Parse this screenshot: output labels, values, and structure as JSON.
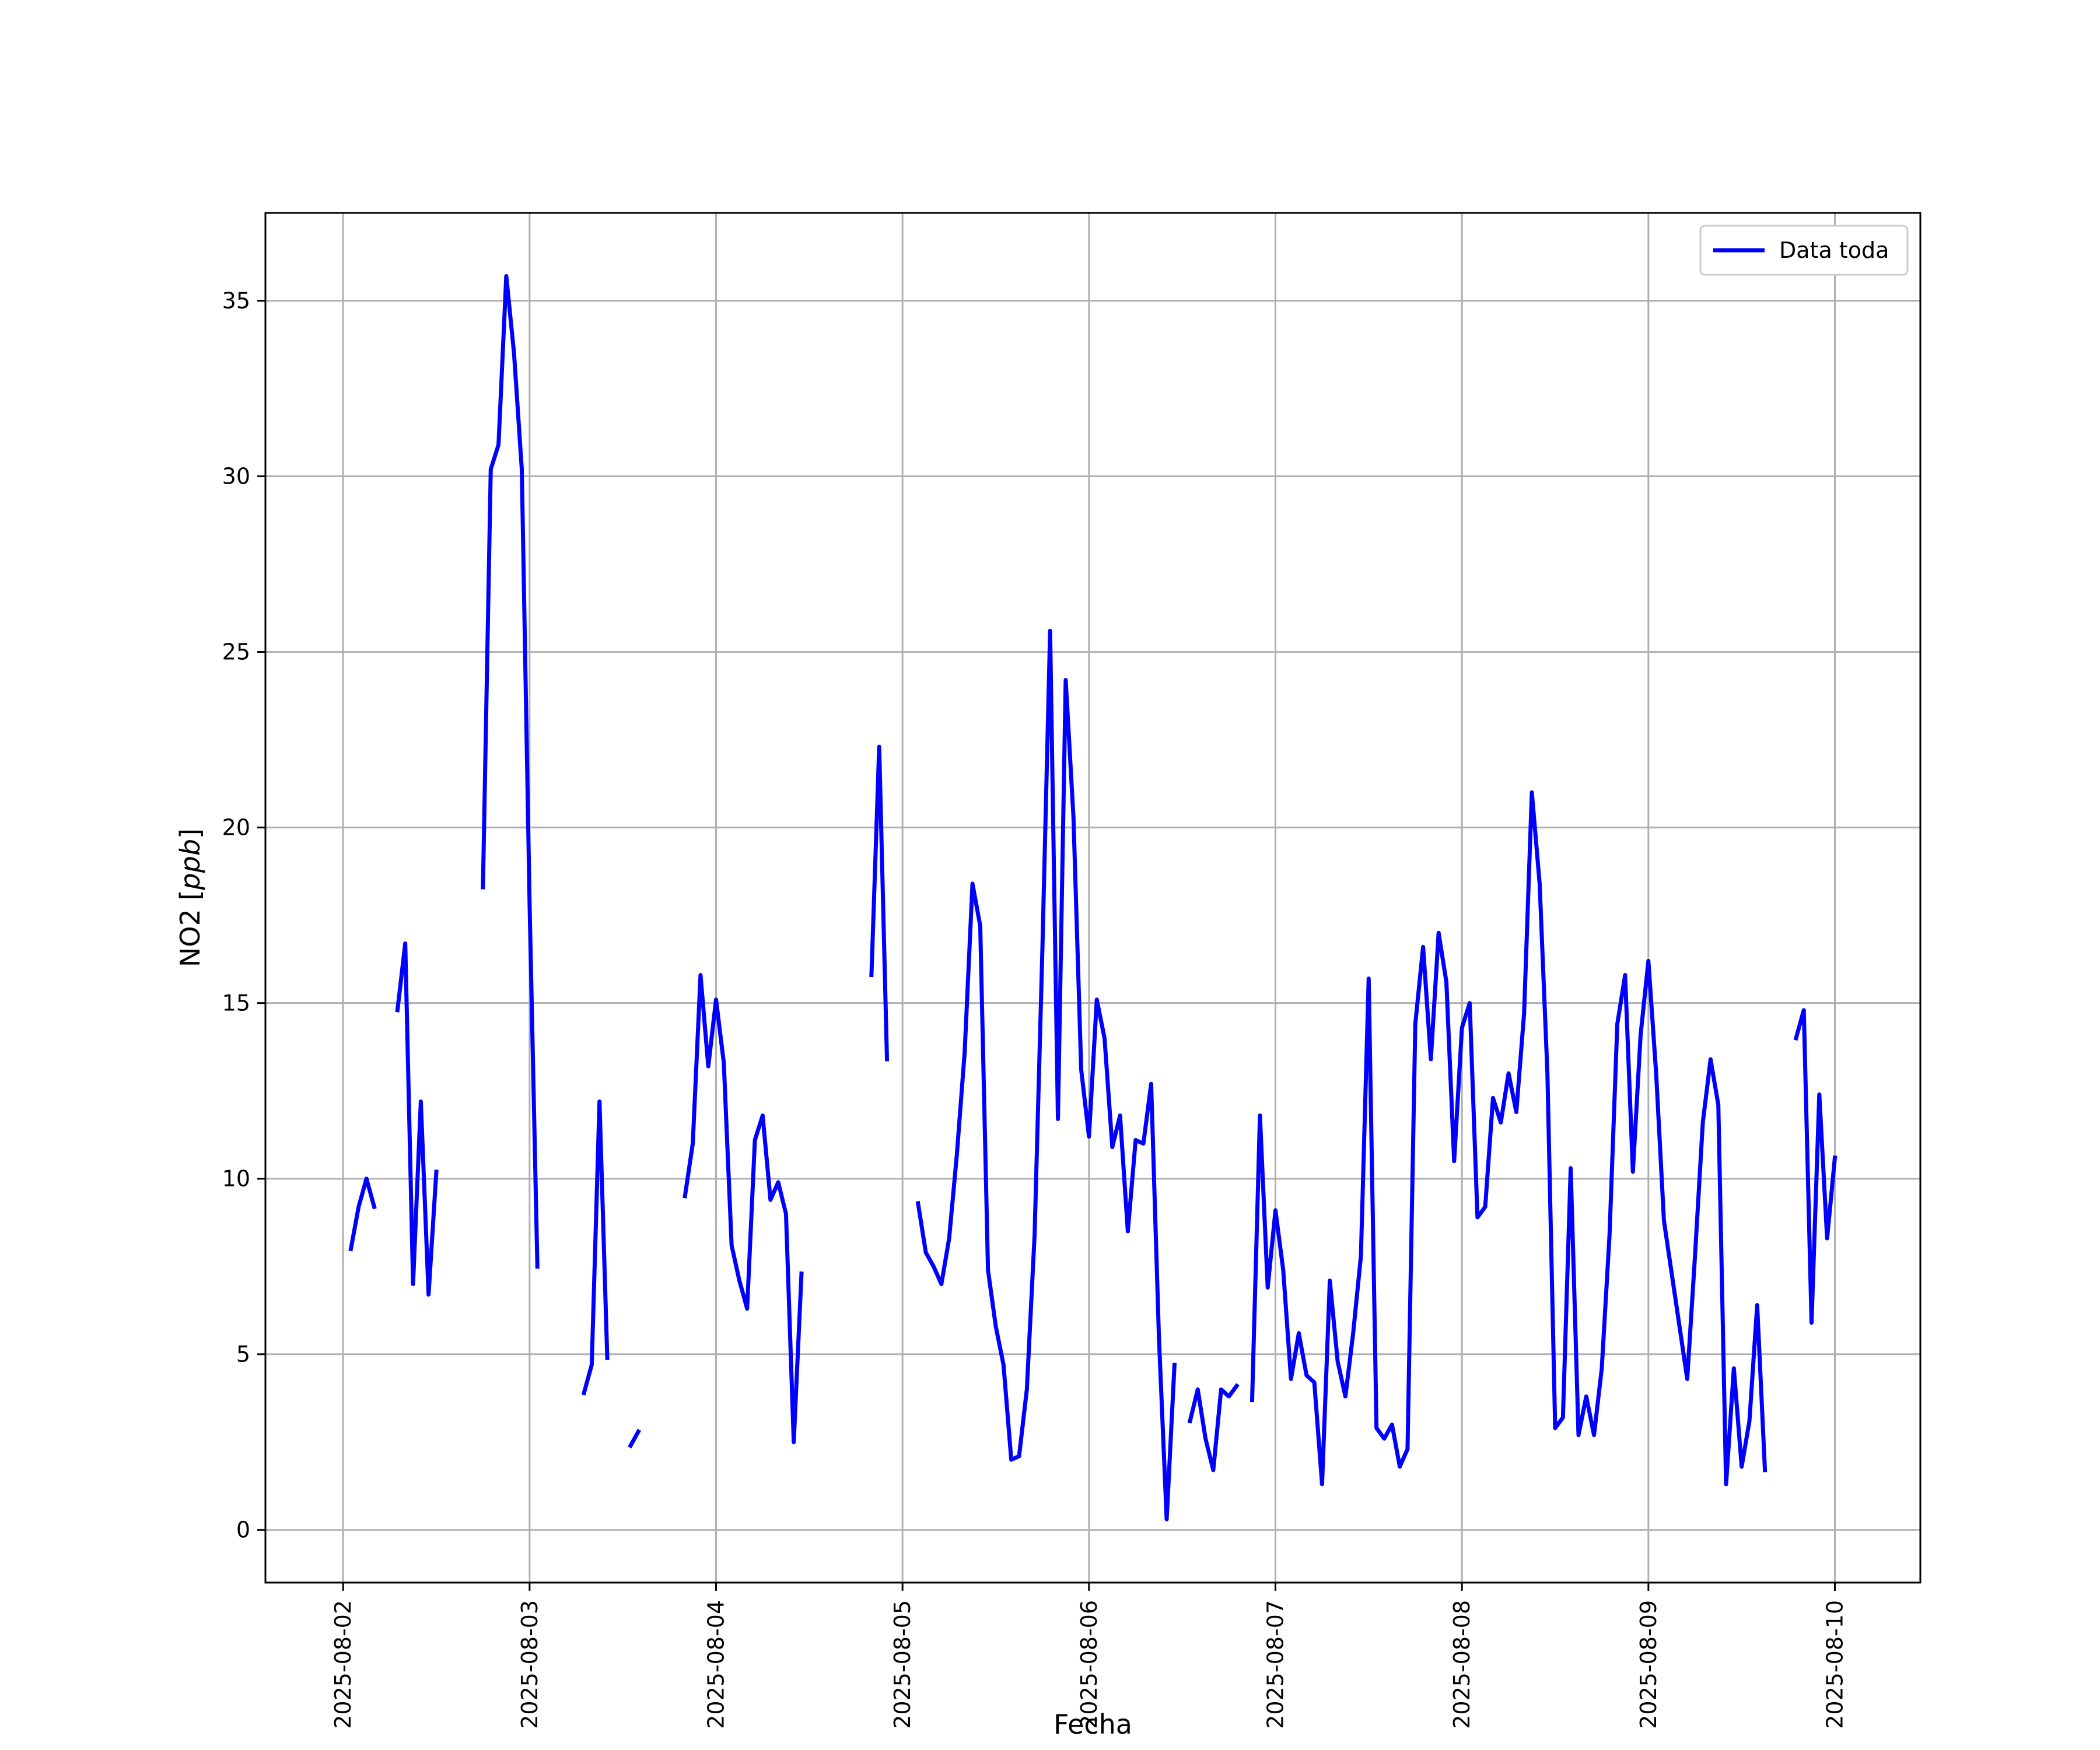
{
  "chart_data": {
    "type": "line",
    "title": "",
    "xlabel": "Fecha",
    "ylabel": "NO2 [ppb]",
    "xlim": [
      "2025-08-01T14:00",
      "2025-08-10T11:00"
    ],
    "ylim": [
      -1.5,
      37.5
    ],
    "grid": true,
    "legend_position": "top-right",
    "x_ticks": [
      "2025-08-02",
      "2025-08-03",
      "2025-08-04",
      "2025-08-05",
      "2025-08-06",
      "2025-08-07",
      "2025-08-08",
      "2025-08-09",
      "2025-08-10"
    ],
    "y_ticks": [
      0,
      5,
      10,
      15,
      20,
      25,
      30,
      35
    ],
    "series": [
      {
        "name": "Data toda",
        "color": "#0000ff",
        "segments": [
          [
            [
              "2025-08-02T01:00",
              8.0
            ],
            [
              "2025-08-02T02:00",
              9.2
            ],
            [
              "2025-08-02T03:00",
              10.0
            ],
            [
              "2025-08-02T04:00",
              9.2
            ]
          ],
          [
            [
              "2025-08-02T07:00",
              14.8
            ],
            [
              "2025-08-02T08:00",
              16.7
            ],
            [
              "2025-08-02T09:00",
              7.0
            ],
            [
              "2025-08-02T10:00",
              12.2
            ],
            [
              "2025-08-02T11:00",
              6.7
            ],
            [
              "2025-08-02T12:00",
              10.2
            ]
          ],
          [
            [
              "2025-08-02T18:00",
              18.3
            ],
            [
              "2025-08-02T19:00",
              30.2
            ],
            [
              "2025-08-02T20:00",
              30.9
            ],
            [
              "2025-08-02T21:00",
              35.7
            ],
            [
              "2025-08-02T22:00",
              33.5
            ],
            [
              "2025-08-02T23:00",
              30.2
            ],
            [
              "2025-08-03T00:00",
              17.8
            ],
            [
              "2025-08-03T01:00",
              7.5
            ]
          ],
          [
            [
              "2025-08-03T07:00",
              3.9
            ],
            [
              "2025-08-03T08:00",
              4.7
            ],
            [
              "2025-08-03T09:00",
              12.2
            ],
            [
              "2025-08-03T10:00",
              4.9
            ]
          ],
          [
            [
              "2025-08-03T13:00",
              2.4
            ],
            [
              "2025-08-03T14:00",
              2.8
            ]
          ],
          [
            [
              "2025-08-03T20:00",
              9.5
            ],
            [
              "2025-08-03T21:00",
              11.0
            ],
            [
              "2025-08-03T22:00",
              15.8
            ],
            [
              "2025-08-03T23:00",
              13.2
            ],
            [
              "2025-08-04T00:00",
              15.1
            ],
            [
              "2025-08-04T01:00",
              13.3
            ],
            [
              "2025-08-04T02:00",
              8.1
            ],
            [
              "2025-08-04T03:00",
              7.1
            ],
            [
              "2025-08-04T04:00",
              6.3
            ],
            [
              "2025-08-04T05:00",
              11.1
            ],
            [
              "2025-08-04T06:00",
              11.8
            ],
            [
              "2025-08-04T07:00",
              9.4
            ],
            [
              "2025-08-04T08:00",
              9.9
            ],
            [
              "2025-08-04T09:00",
              9.0
            ],
            [
              "2025-08-04T10:00",
              2.5
            ],
            [
              "2025-08-04T11:00",
              7.3
            ]
          ],
          [
            [
              "2025-08-04T20:00",
              15.8
            ],
            [
              "2025-08-04T21:00",
              22.3
            ],
            [
              "2025-08-04T22:00",
              13.4
            ]
          ],
          [
            [
              "2025-08-05T02:00",
              9.3
            ],
            [
              "2025-08-05T03:00",
              7.9
            ],
            [
              "2025-08-05T04:00",
              7.5
            ],
            [
              "2025-08-05T05:00",
              7.0
            ],
            [
              "2025-08-05T06:00",
              8.3
            ],
            [
              "2025-08-05T07:00",
              10.7
            ],
            [
              "2025-08-05T08:00",
              13.6
            ],
            [
              "2025-08-05T09:00",
              18.4
            ],
            [
              "2025-08-05T10:00",
              17.2
            ],
            [
              "2025-08-05T11:00",
              7.4
            ],
            [
              "2025-08-05T12:00",
              5.8
            ],
            [
              "2025-08-05T13:00",
              4.7
            ],
            [
              "2025-08-05T14:00",
              2.0
            ],
            [
              "2025-08-05T15:00",
              2.1
            ],
            [
              "2025-08-05T16:00",
              4.0
            ],
            [
              "2025-08-05T17:00",
              8.4
            ],
            [
              "2025-08-05T18:00",
              16.5
            ],
            [
              "2025-08-05T19:00",
              25.6
            ],
            [
              "2025-08-05T20:00",
              11.7
            ],
            [
              "2025-08-05T21:00",
              24.2
            ],
            [
              "2025-08-05T22:00",
              20.3
            ],
            [
              "2025-08-05T23:00",
              13.1
            ],
            [
              "2025-08-06T00:00",
              11.2
            ],
            [
              "2025-08-06T01:00",
              15.1
            ],
            [
              "2025-08-06T02:00",
              14.0
            ],
            [
              "2025-08-06T03:00",
              10.9
            ],
            [
              "2025-08-06T04:00",
              11.8
            ],
            [
              "2025-08-06T05:00",
              8.5
            ],
            [
              "2025-08-06T06:00",
              11.1
            ],
            [
              "2025-08-06T07:00",
              11.0
            ],
            [
              "2025-08-06T08:00",
              12.7
            ],
            [
              "2025-08-06T09:00",
              5.5
            ],
            [
              "2025-08-06T10:00",
              0.3
            ],
            [
              "2025-08-06T11:00",
              4.7
            ]
          ],
          [
            [
              "2025-08-06T13:00",
              3.1
            ],
            [
              "2025-08-06T14:00",
              4.0
            ],
            [
              "2025-08-06T15:00",
              2.6
            ],
            [
              "2025-08-06T16:00",
              1.7
            ],
            [
              "2025-08-06T17:00",
              4.0
            ],
            [
              "2025-08-06T18:00",
              3.8
            ],
            [
              "2025-08-06T19:00",
              4.1
            ]
          ],
          [
            [
              "2025-08-06T21:00",
              3.7
            ],
            [
              "2025-08-06T22:00",
              11.8
            ],
            [
              "2025-08-06T23:00",
              6.9
            ],
            [
              "2025-08-07T00:00",
              9.1
            ],
            [
              "2025-08-07T01:00",
              7.4
            ],
            [
              "2025-08-07T02:00",
              4.3
            ],
            [
              "2025-08-07T03:00",
              5.6
            ],
            [
              "2025-08-07T04:00",
              4.4
            ],
            [
              "2025-08-07T05:00",
              4.2
            ],
            [
              "2025-08-07T06:00",
              1.3
            ],
            [
              "2025-08-07T07:00",
              7.1
            ],
            [
              "2025-08-07T08:00",
              4.8
            ],
            [
              "2025-08-07T09:00",
              3.8
            ],
            [
              "2025-08-07T10:00",
              5.6
            ],
            [
              "2025-08-07T11:00",
              7.8
            ],
            [
              "2025-08-07T12:00",
              15.7
            ],
            [
              "2025-08-07T13:00",
              2.9
            ],
            [
              "2025-08-07T14:00",
              2.6
            ],
            [
              "2025-08-07T15:00",
              3.0
            ],
            [
              "2025-08-07T16:00",
              1.8
            ],
            [
              "2025-08-07T17:00",
              2.3
            ],
            [
              "2025-08-07T18:00",
              14.4
            ],
            [
              "2025-08-07T19:00",
              16.6
            ],
            [
              "2025-08-07T20:00",
              13.4
            ],
            [
              "2025-08-07T21:00",
              17.0
            ],
            [
              "2025-08-07T22:00",
              15.6
            ],
            [
              "2025-08-07T23:00",
              10.5
            ],
            [
              "2025-08-08T00:00",
              14.3
            ],
            [
              "2025-08-08T01:00",
              15.0
            ],
            [
              "2025-08-08T02:00",
              8.9
            ],
            [
              "2025-08-08T03:00",
              9.2
            ],
            [
              "2025-08-08T04:00",
              12.3
            ],
            [
              "2025-08-08T05:00",
              11.6
            ],
            [
              "2025-08-08T06:00",
              13.0
            ],
            [
              "2025-08-08T07:00",
              11.9
            ],
            [
              "2025-08-08T08:00",
              14.7
            ],
            [
              "2025-08-08T09:00",
              21.0
            ],
            [
              "2025-08-08T10:00",
              18.4
            ],
            [
              "2025-08-08T11:00",
              13.0
            ],
            [
              "2025-08-08T12:00",
              2.9
            ],
            [
              "2025-08-08T13:00",
              3.2
            ],
            [
              "2025-08-08T14:00",
              10.3
            ],
            [
              "2025-08-08T15:00",
              2.7
            ],
            [
              "2025-08-08T16:00",
              3.8
            ],
            [
              "2025-08-08T17:00",
              2.7
            ],
            [
              "2025-08-08T18:00",
              4.6
            ],
            [
              "2025-08-08T19:00",
              8.4
            ],
            [
              "2025-08-08T20:00",
              14.4
            ],
            [
              "2025-08-08T21:00",
              15.8
            ],
            [
              "2025-08-08T22:00",
              10.2
            ],
            [
              "2025-08-08T23:00",
              14.1
            ],
            [
              "2025-08-09T00:00",
              16.2
            ],
            [
              "2025-08-09T01:00",
              13.0
            ],
            [
              "2025-08-09T02:00",
              8.8
            ],
            [
              "2025-08-09T05:00",
              4.3
            ],
            [
              "2025-08-09T06:00",
              7.8
            ],
            [
              "2025-08-09T07:00",
              11.6
            ],
            [
              "2025-08-09T08:00",
              13.4
            ],
            [
              "2025-08-09T09:00",
              12.1
            ],
            [
              "2025-08-09T10:00",
              1.3
            ],
            [
              "2025-08-09T11:00",
              4.6
            ],
            [
              "2025-08-09T12:00",
              1.8
            ],
            [
              "2025-08-09T13:00",
              3.1
            ],
            [
              "2025-08-09T14:00",
              6.4
            ],
            [
              "2025-08-09T15:00",
              1.7
            ]
          ],
          [
            [
              "2025-08-09T19:00",
              14.0
            ],
            [
              "2025-08-09T20:00",
              14.8
            ],
            [
              "2025-08-09T21:00",
              5.9
            ],
            [
              "2025-08-09T22:00",
              12.4
            ],
            [
              "2025-08-09T23:00",
              8.3
            ],
            [
              "2025-08-10T00:00",
              10.6
            ]
          ]
        ]
      }
    ]
  }
}
